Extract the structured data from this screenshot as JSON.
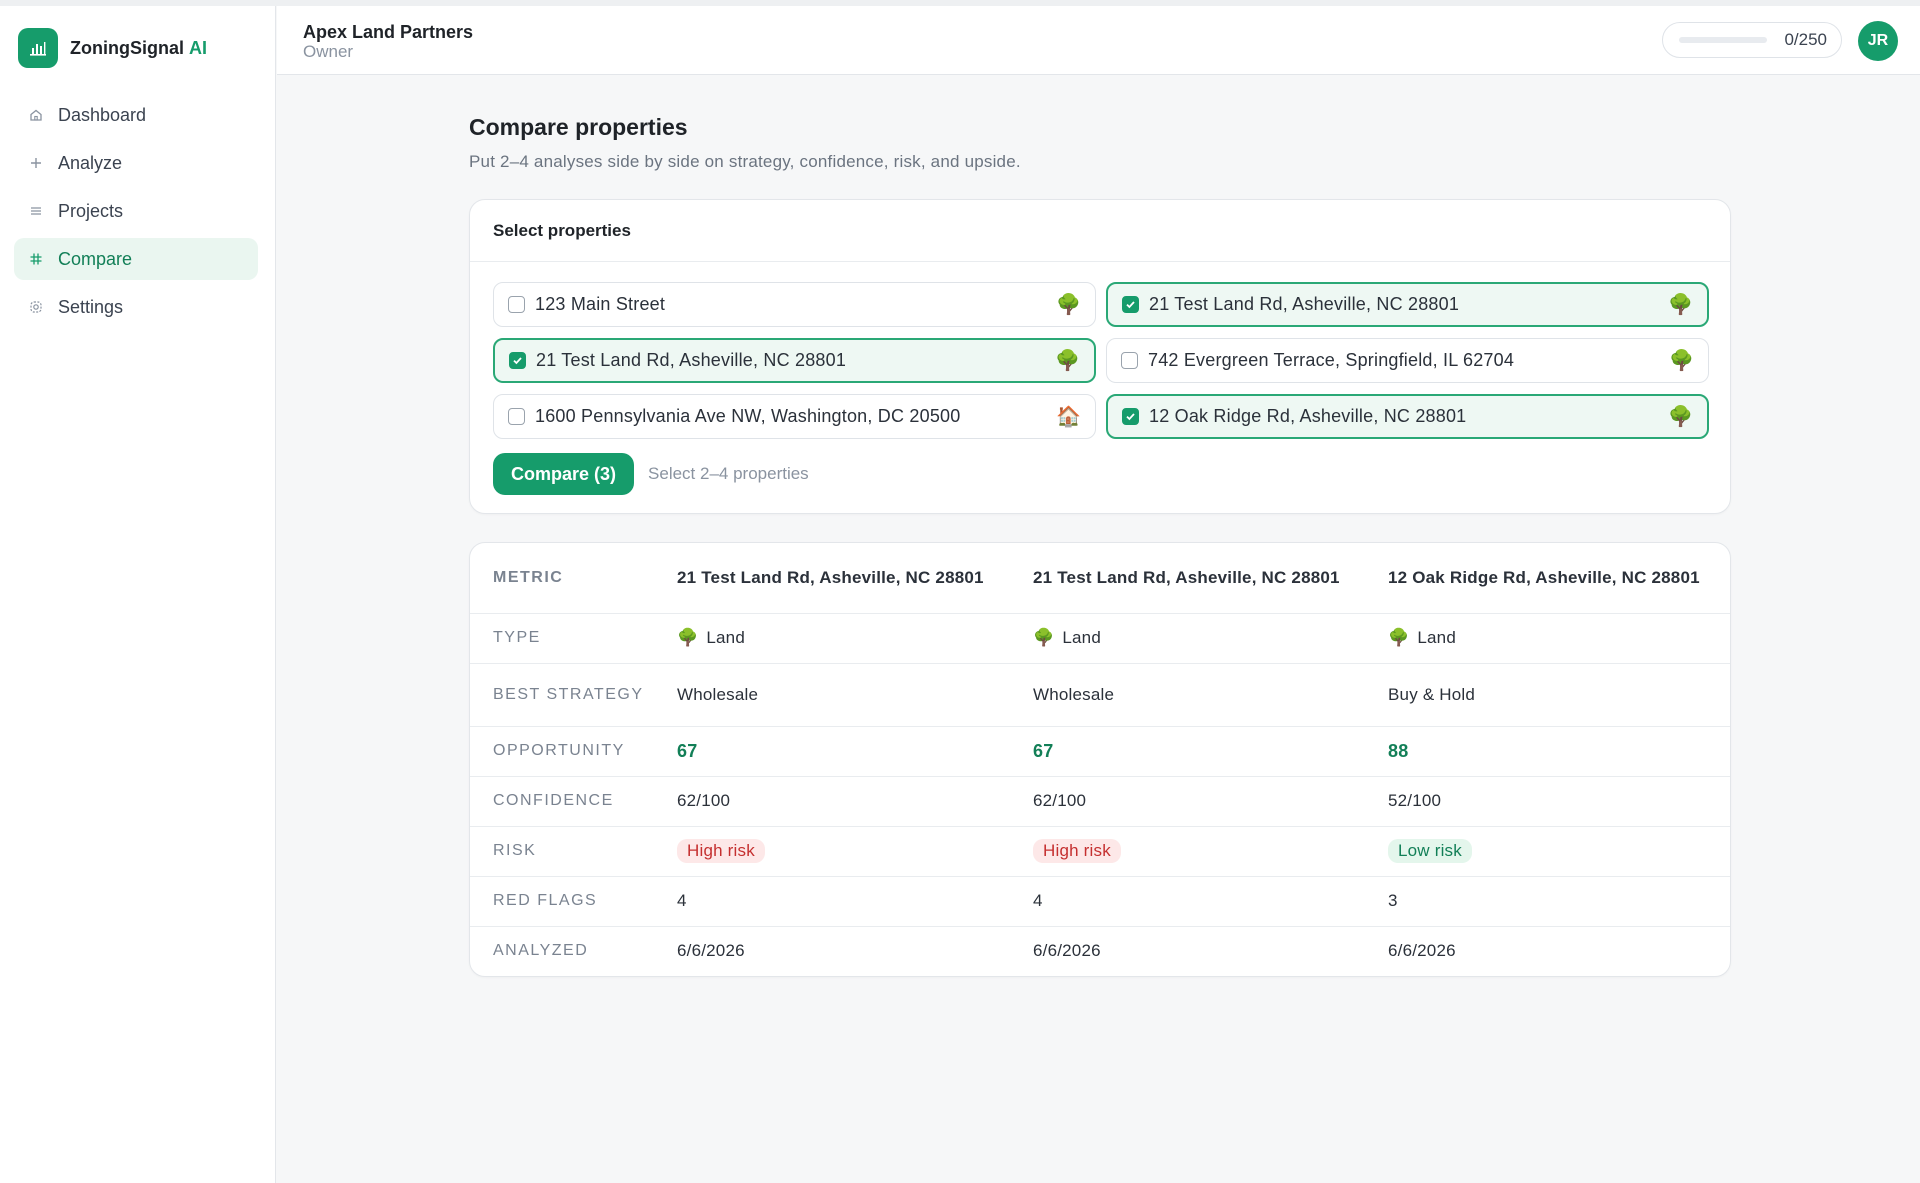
{
  "brand": {
    "name": "ZoningSignal",
    "suffix": "AI",
    "logo_icon": "bar-chart-icon"
  },
  "nav": [
    {
      "label": "Dashboard",
      "icon": "home-icon",
      "active": false
    },
    {
      "label": "Analyze",
      "icon": "plus-icon",
      "active": false
    },
    {
      "label": "Projects",
      "icon": "list-icon",
      "active": false
    },
    {
      "label": "Compare",
      "icon": "grid-icon",
      "active": true
    },
    {
      "label": "Settings",
      "icon": "gear-icon",
      "active": false
    }
  ],
  "header": {
    "org_name": "Apex Land Partners",
    "org_role": "Owner",
    "usage_text": "0/250",
    "usage_fraction": 0,
    "avatar_initials": "JR"
  },
  "page": {
    "title": "Compare properties",
    "subtitle": "Put 2–4 analyses side by side on strategy, confidence, risk, and upside."
  },
  "select_card": {
    "title": "Select properties",
    "properties": [
      {
        "label": "123 Main Street",
        "selected": false,
        "icon": "🌳"
      },
      {
        "label": "21 Test Land Rd, Asheville, NC 28801",
        "selected": true,
        "icon": "🌳"
      },
      {
        "label": "21 Test Land Rd, Asheville, NC 28801",
        "selected": true,
        "icon": "🌳"
      },
      {
        "label": "742 Evergreen Terrace, Springfield, IL 62704",
        "selected": false,
        "icon": "🌳"
      },
      {
        "label": "1600 Pennsylvania Ave NW, Washington, DC 20500",
        "selected": false,
        "icon": "🏠"
      },
      {
        "label": "12 Oak Ridge Rd, Asheville, NC 28801",
        "selected": true,
        "icon": "🌳"
      }
    ],
    "compare_button": "Compare (3)",
    "hint": "Select 2–4 properties"
  },
  "comparison": {
    "metric_header": "METRIC",
    "columns": [
      "21 Test Land Rd, Asheville, NC 28801",
      "21 Test Land Rd, Asheville, NC 28801",
      "12 Oak Ridge Rd, Asheville, NC 28801"
    ],
    "rows": {
      "type": {
        "label": "TYPE",
        "icon": "🌳",
        "values": [
          "Land",
          "Land",
          "Land"
        ]
      },
      "strategy": {
        "label": "BEST STRATEGY",
        "values": [
          "Wholesale",
          "Wholesale",
          "Buy & Hold"
        ]
      },
      "opportunity": {
        "label": "OPPORTUNITY",
        "values": [
          "67",
          "67",
          "88"
        ]
      },
      "confidence": {
        "label": "CONFIDENCE",
        "values": [
          "62/100",
          "62/100",
          "52/100"
        ]
      },
      "risk": {
        "label": "RISK",
        "values": [
          "High risk",
          "High risk",
          "Low risk"
        ],
        "levels": [
          "high",
          "high",
          "low"
        ]
      },
      "red_flags": {
        "label": "RED FLAGS",
        "values": [
          "4",
          "4",
          "3"
        ]
      },
      "analyzed": {
        "label": "ANALYZED",
        "values": [
          "6/6/2026",
          "6/6/2026",
          "6/6/2026"
        ]
      }
    }
  },
  "colors": {
    "accent": "#169c6b",
    "risk_high": "#c53030",
    "risk_low": "#127f57"
  }
}
